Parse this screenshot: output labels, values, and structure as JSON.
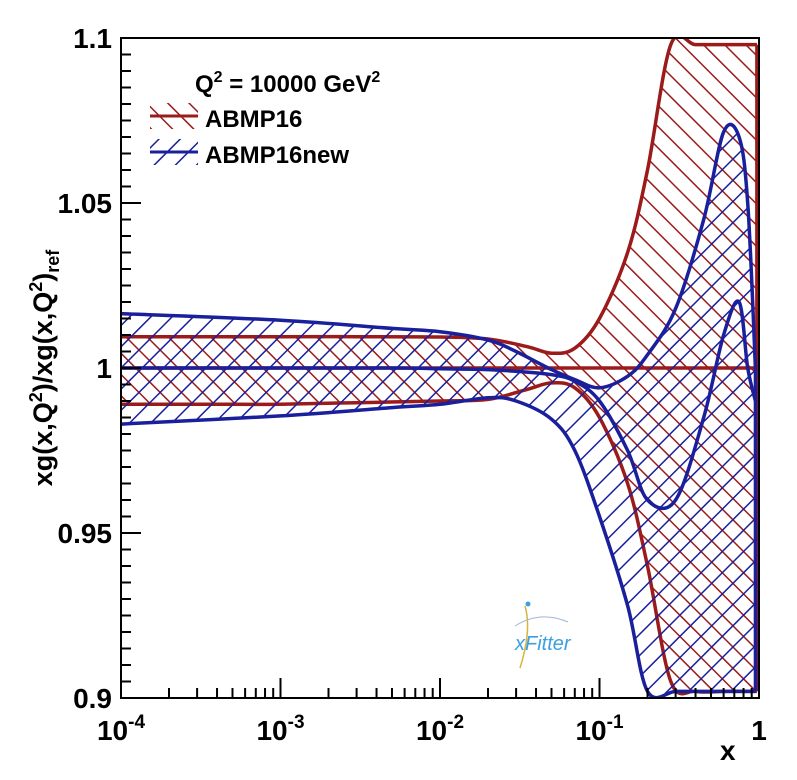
{
  "chart_data": {
    "type": "area",
    "title": "Q^2 = 10000 GeV^2",
    "title_parts": {
      "q": "Q",
      "q_sup": "2",
      "mid": " = 10000 GeV",
      "unit_sup": "2"
    },
    "xlabel": "x",
    "ylabel_parts": {
      "a": "xg(x,Q",
      "a_sup": "2",
      "b": ")/xg(x,Q",
      "b_sup": "2",
      "c": ")",
      "c_sub": "ref"
    },
    "x_scale": "log",
    "xlim": [
      0.0001,
      1
    ],
    "ylim": [
      0.9,
      1.1
    ],
    "x_ticks": [
      {
        "value": 0.0001,
        "base": "10",
        "exp": "-4"
      },
      {
        "value": 0.001,
        "base": "10",
        "exp": "-3"
      },
      {
        "value": 0.01,
        "base": "10",
        "exp": "-2"
      },
      {
        "value": 0.1,
        "base": "10",
        "exp": "-1"
      },
      {
        "value": 1,
        "label": "1"
      }
    ],
    "y_ticks": [
      {
        "value": 0.9,
        "label": "0.9"
      },
      {
        "value": 0.95,
        "label": "0.95"
      },
      {
        "value": 1.0,
        "label": "1"
      },
      {
        "value": 1.05,
        "label": "1.05"
      },
      {
        "value": 1.1,
        "label": "1.1"
      }
    ],
    "legend_position": "top-left",
    "logo_text": "xFitter",
    "series": [
      {
        "name": "ABMP16",
        "color": "#9b1b1b",
        "hatch": "forward-diagonal",
        "x": [
          0.0001,
          0.0005,
          0.001,
          0.003,
          0.01,
          0.02,
          0.035,
          0.05,
          0.07,
          0.1,
          0.15,
          0.2,
          0.28,
          0.4,
          0.6,
          0.8,
          0.97
        ],
        "central": [
          1.0,
          1.0,
          1.0,
          1.0,
          1.0,
          1.0,
          1.0,
          1.0,
          1.0,
          1.0,
          1.0,
          1.0,
          1.0,
          1.0,
          1.0,
          1.0,
          1.0
        ],
        "upper": [
          1.0095,
          1.0095,
          1.0095,
          1.0095,
          1.0094,
          1.0088,
          1.0065,
          1.0045,
          1.006,
          1.015,
          1.035,
          1.06,
          1.098,
          1.098,
          1.098,
          1.098,
          1.098
        ],
        "lower": [
          0.989,
          0.989,
          0.989,
          0.9895,
          0.99,
          0.9905,
          0.9935,
          0.9955,
          0.994,
          0.985,
          0.965,
          0.94,
          0.905,
          0.902,
          0.902,
          0.902,
          0.902
        ]
      },
      {
        "name": "ABMP16new",
        "color": "#1a1f9c",
        "hatch": "back-diagonal",
        "x": [
          0.0001,
          0.001,
          0.005,
          0.01,
          0.02,
          0.03,
          0.05,
          0.07,
          0.1,
          0.15,
          0.2,
          0.3,
          0.45,
          0.6,
          0.75,
          0.85,
          0.95
        ],
        "central": [
          1.0,
          1.0,
          1.0,
          0.9998,
          0.9995,
          0.999,
          0.998,
          0.996,
          0.99,
          0.975,
          0.96,
          0.96,
          0.985,
          1.01,
          1.02,
          1.0,
          0.99
        ],
        "upper": [
          1.0165,
          1.0145,
          1.012,
          1.011,
          1.0085,
          1.005,
          0.9995,
          0.9965,
          0.994,
          0.9975,
          1.004,
          1.018,
          1.045,
          1.0715,
          1.07,
          1.05,
          1.0
        ],
        "lower": [
          0.983,
          0.9855,
          0.988,
          0.989,
          0.991,
          0.99,
          0.9845,
          0.975,
          0.955,
          0.928,
          0.902,
          0.902,
          0.902,
          0.902,
          0.902,
          0.902,
          0.902
        ]
      }
    ]
  }
}
